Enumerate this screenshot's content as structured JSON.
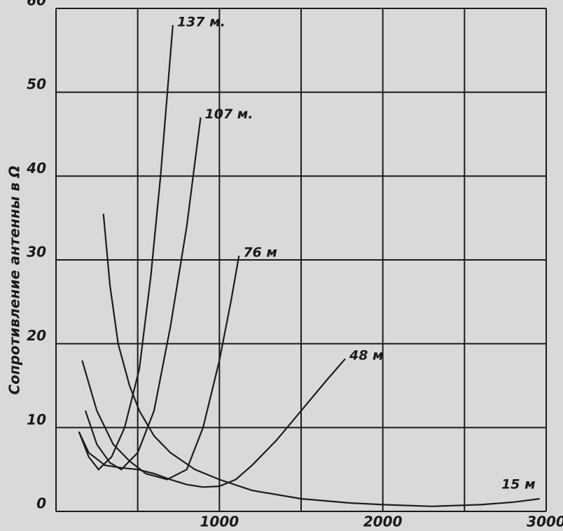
{
  "chart_data": {
    "type": "line",
    "y_label": "Сопротивление антенны в Ω",
    "xlim": [
      0,
      3000
    ],
    "ylim": [
      0,
      60
    ],
    "xticks": [
      1000,
      2000,
      3000
    ],
    "xgrid": [
      500,
      1000,
      1500,
      2000,
      2500,
      3000
    ],
    "yticks": [
      0,
      10,
      20,
      30,
      40,
      50,
      60
    ],
    "grid": true,
    "series": [
      {
        "name": "137 м.",
        "color": "#1c1c1c",
        "x": [
          140,
          200,
          260,
          340,
          420,
          510,
          580,
          640,
          690,
          715
        ],
        "values": [
          9.5,
          6.5,
          5,
          6.5,
          10,
          17,
          28,
          40,
          52,
          58
        ]
      },
      {
        "name": "107 м.",
        "color": "#1c1c1c",
        "x": [
          180,
          250,
          330,
          400,
          500,
          600,
          700,
          800,
          885
        ],
        "values": [
          12,
          8,
          5.8,
          5,
          7,
          12,
          22,
          34,
          47
        ]
      },
      {
        "name": "76 м",
        "color": "#1c1c1c",
        "x": [
          160,
          250,
          350,
          450,
          550,
          680,
          800,
          900,
          1000,
          1070,
          1120
        ],
        "values": [
          18,
          12,
          8,
          6,
          4.5,
          3.8,
          5,
          10,
          18,
          25,
          30.5
        ]
      },
      {
        "name": "48 м",
        "color": "#1c1c1c",
        "x": [
          140,
          200,
          300,
          400,
          500,
          600,
          700,
          800,
          900,
          1000,
          1100,
          1200,
          1350,
          1500,
          1650,
          1770
        ],
        "values": [
          9.5,
          7,
          5.5,
          5.2,
          5,
          4.5,
          3.8,
          3.2,
          2.9,
          3,
          3.8,
          5.5,
          8.5,
          12,
          15.5,
          18.2
        ]
      },
      {
        "name": "15 м",
        "color": "#1c1c1c",
        "x": [
          290,
          330,
          380,
          450,
          510,
          600,
          700,
          850,
          1000,
          1200,
          1500,
          1800,
          2000,
          2300,
          2600,
          2800,
          2960
        ],
        "values": [
          35.5,
          27,
          20,
          15,
          12,
          9,
          7,
          5,
          3.8,
          2.5,
          1.5,
          1,
          0.8,
          0.6,
          0.8,
          1.1,
          1.5
        ]
      }
    ]
  }
}
